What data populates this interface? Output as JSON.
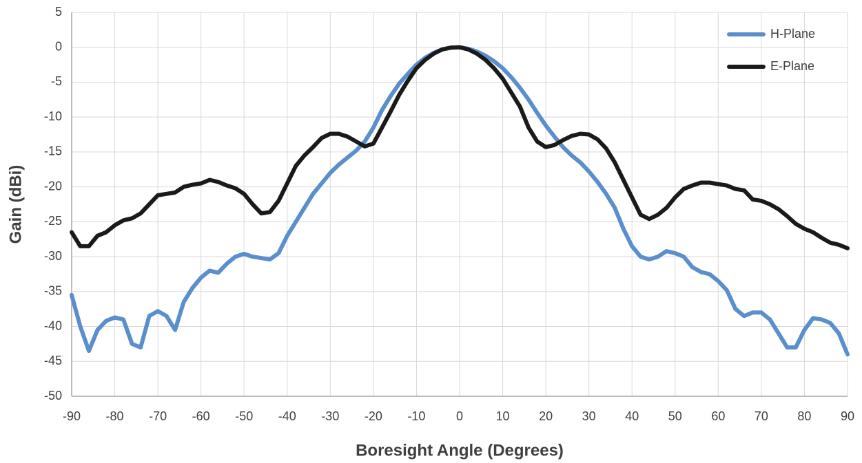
{
  "chart_data": {
    "type": "line",
    "xlabel": "Boresight Angle (Degrees)",
    "ylabel": "Gain (dBi)",
    "xlim": [
      -90,
      90
    ],
    "ylim": [
      -50,
      5
    ],
    "xticks": [
      -90,
      -80,
      -70,
      -60,
      -50,
      -40,
      -30,
      -20,
      -10,
      0,
      10,
      20,
      30,
      40,
      50,
      60,
      70,
      80,
      90
    ],
    "yticks": [
      5,
      0,
      -5,
      -10,
      -15,
      -20,
      -25,
      -30,
      -35,
      -40,
      -45,
      -50
    ],
    "grid": true,
    "legend": "upper right",
    "x": [
      -90,
      -88,
      -86,
      -84,
      -82,
      -80,
      -78,
      -76,
      -74,
      -72,
      -70,
      -68,
      -66,
      -64,
      -62,
      -60,
      -58,
      -56,
      -54,
      -52,
      -50,
      -48,
      -46,
      -44,
      -42,
      -40,
      -38,
      -36,
      -34,
      -32,
      -30,
      -28,
      -26,
      -24,
      -22,
      -20,
      -18,
      -16,
      -14,
      -12,
      -10,
      -8,
      -6,
      -4,
      -2,
      0,
      2,
      4,
      6,
      8,
      10,
      12,
      14,
      16,
      18,
      20,
      22,
      24,
      26,
      28,
      30,
      32,
      34,
      36,
      38,
      40,
      42,
      44,
      46,
      48,
      50,
      52,
      54,
      56,
      58,
      60,
      62,
      64,
      66,
      68,
      70,
      72,
      74,
      76,
      78,
      80,
      82,
      84,
      86,
      88,
      90
    ],
    "series": [
      {
        "name": "H-Plane",
        "color": "#5b8fcc",
        "values": [
          -35.5,
          -40,
          -43.5,
          -40.5,
          -39.2,
          -38.7,
          -39,
          -42.5,
          -43,
          -38.5,
          -37.8,
          -38.5,
          -40.5,
          -36.5,
          -34.5,
          -33,
          -32,
          -32.3,
          -31,
          -30,
          -29.6,
          -30,
          -30.2,
          -30.4,
          -29.5,
          -27,
          -25,
          -23,
          -21,
          -19.5,
          -18,
          -16.8,
          -15.8,
          -14.8,
          -13.5,
          -11.5,
          -9,
          -7,
          -5.2,
          -3.8,
          -2.5,
          -1.5,
          -0.8,
          -0.3,
          -0.05,
          0,
          -0.2,
          -0.6,
          -1.2,
          -2,
          -3,
          -4.3,
          -5.8,
          -7.5,
          -9.4,
          -11.2,
          -12.8,
          -14.3,
          -15.5,
          -16.5,
          -17.8,
          -19.3,
          -21,
          -23,
          -26,
          -28.5,
          -30,
          -30.4,
          -30,
          -29.2,
          -29.5,
          -30,
          -31.5,
          -32.2,
          -32.5,
          -33.5,
          -34.8,
          -37.5,
          -38.5,
          -38,
          -38,
          -39,
          -41,
          -43,
          -43,
          -40.5,
          -38.8,
          -39,
          -39.5,
          -41,
          -44
        ]
      },
      {
        "name": "E-Plane",
        "color": "#1a1a1a",
        "values": [
          -26.5,
          -28.5,
          -28.5,
          -27,
          -26.5,
          -25.5,
          -24.8,
          -24.5,
          -23.8,
          -22.5,
          -21.2,
          -21,
          -20.8,
          -20,
          -19.7,
          -19.5,
          -19,
          -19.3,
          -19.8,
          -20.2,
          -21,
          -22.5,
          -23.8,
          -23.6,
          -22,
          -19.5,
          -17,
          -15.5,
          -14.3,
          -13,
          -12.4,
          -12.4,
          -12.8,
          -13.5,
          -14.2,
          -13.8,
          -11.5,
          -9.2,
          -6.8,
          -4.8,
          -3,
          -1.8,
          -0.9,
          -0.3,
          -0.05,
          0,
          -0.3,
          -0.9,
          -1.8,
          -3,
          -4.5,
          -6.5,
          -8.5,
          -11.5,
          -13.5,
          -14.3,
          -14,
          -13.3,
          -12.7,
          -12.4,
          -12.5,
          -13.2,
          -14.5,
          -16.5,
          -19,
          -21.5,
          -24,
          -24.6,
          -24,
          -23,
          -21.5,
          -20.3,
          -19.8,
          -19.4,
          -19.4,
          -19.6,
          -19.8,
          -20.3,
          -20.5,
          -21.8,
          -22,
          -22.5,
          -23.2,
          -24.2,
          -25.3,
          -26,
          -26.5,
          -27.3,
          -28,
          -28.3,
          -28.8
        ]
      }
    ]
  }
}
